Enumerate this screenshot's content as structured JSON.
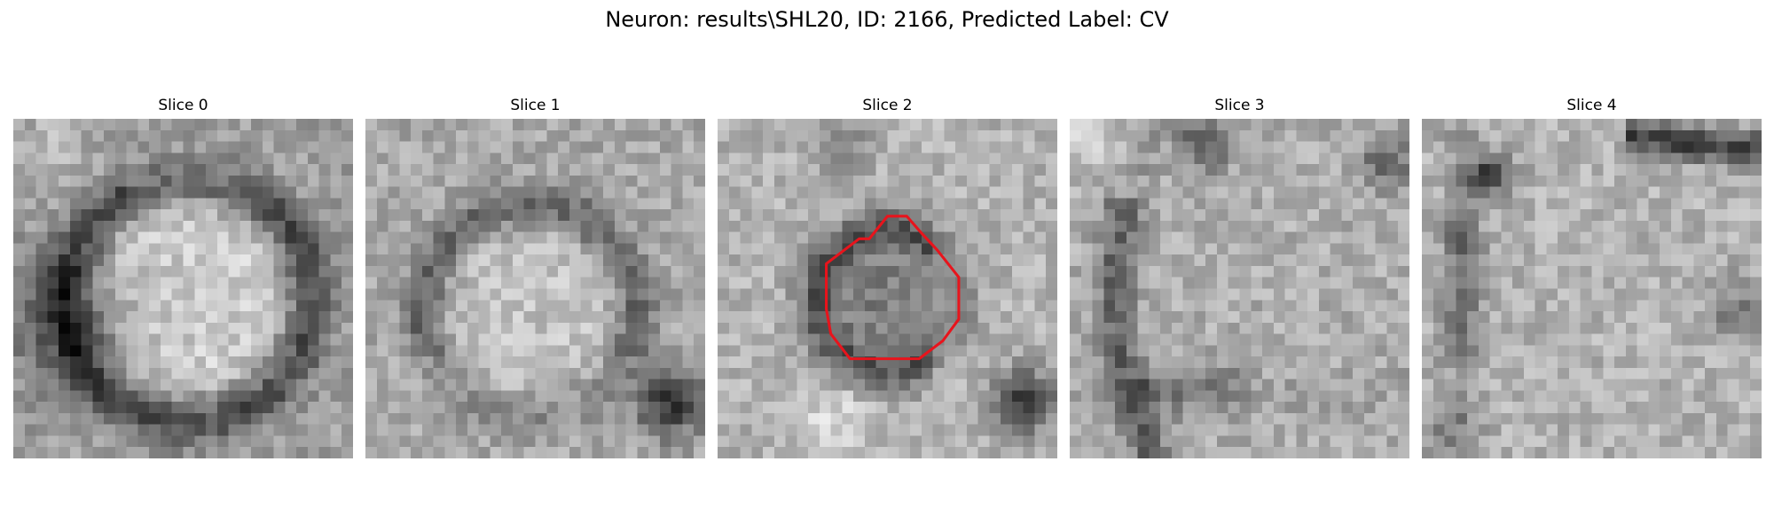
{
  "figure": {
    "title": "Neuron: results\\SHL20, ID: 2166, Predicted Label: CV"
  },
  "colors": {
    "background": "#ffffff",
    "contour": "#e8141c"
  },
  "slices": [
    {
      "label": "Slice 0",
      "has_contour": false
    },
    {
      "label": "Slice 1",
      "has_contour": false
    },
    {
      "label": "Slice 2",
      "has_contour": true
    },
    {
      "label": "Slice 3",
      "has_contour": false
    },
    {
      "label": "Slice 4",
      "has_contour": false
    }
  ]
}
